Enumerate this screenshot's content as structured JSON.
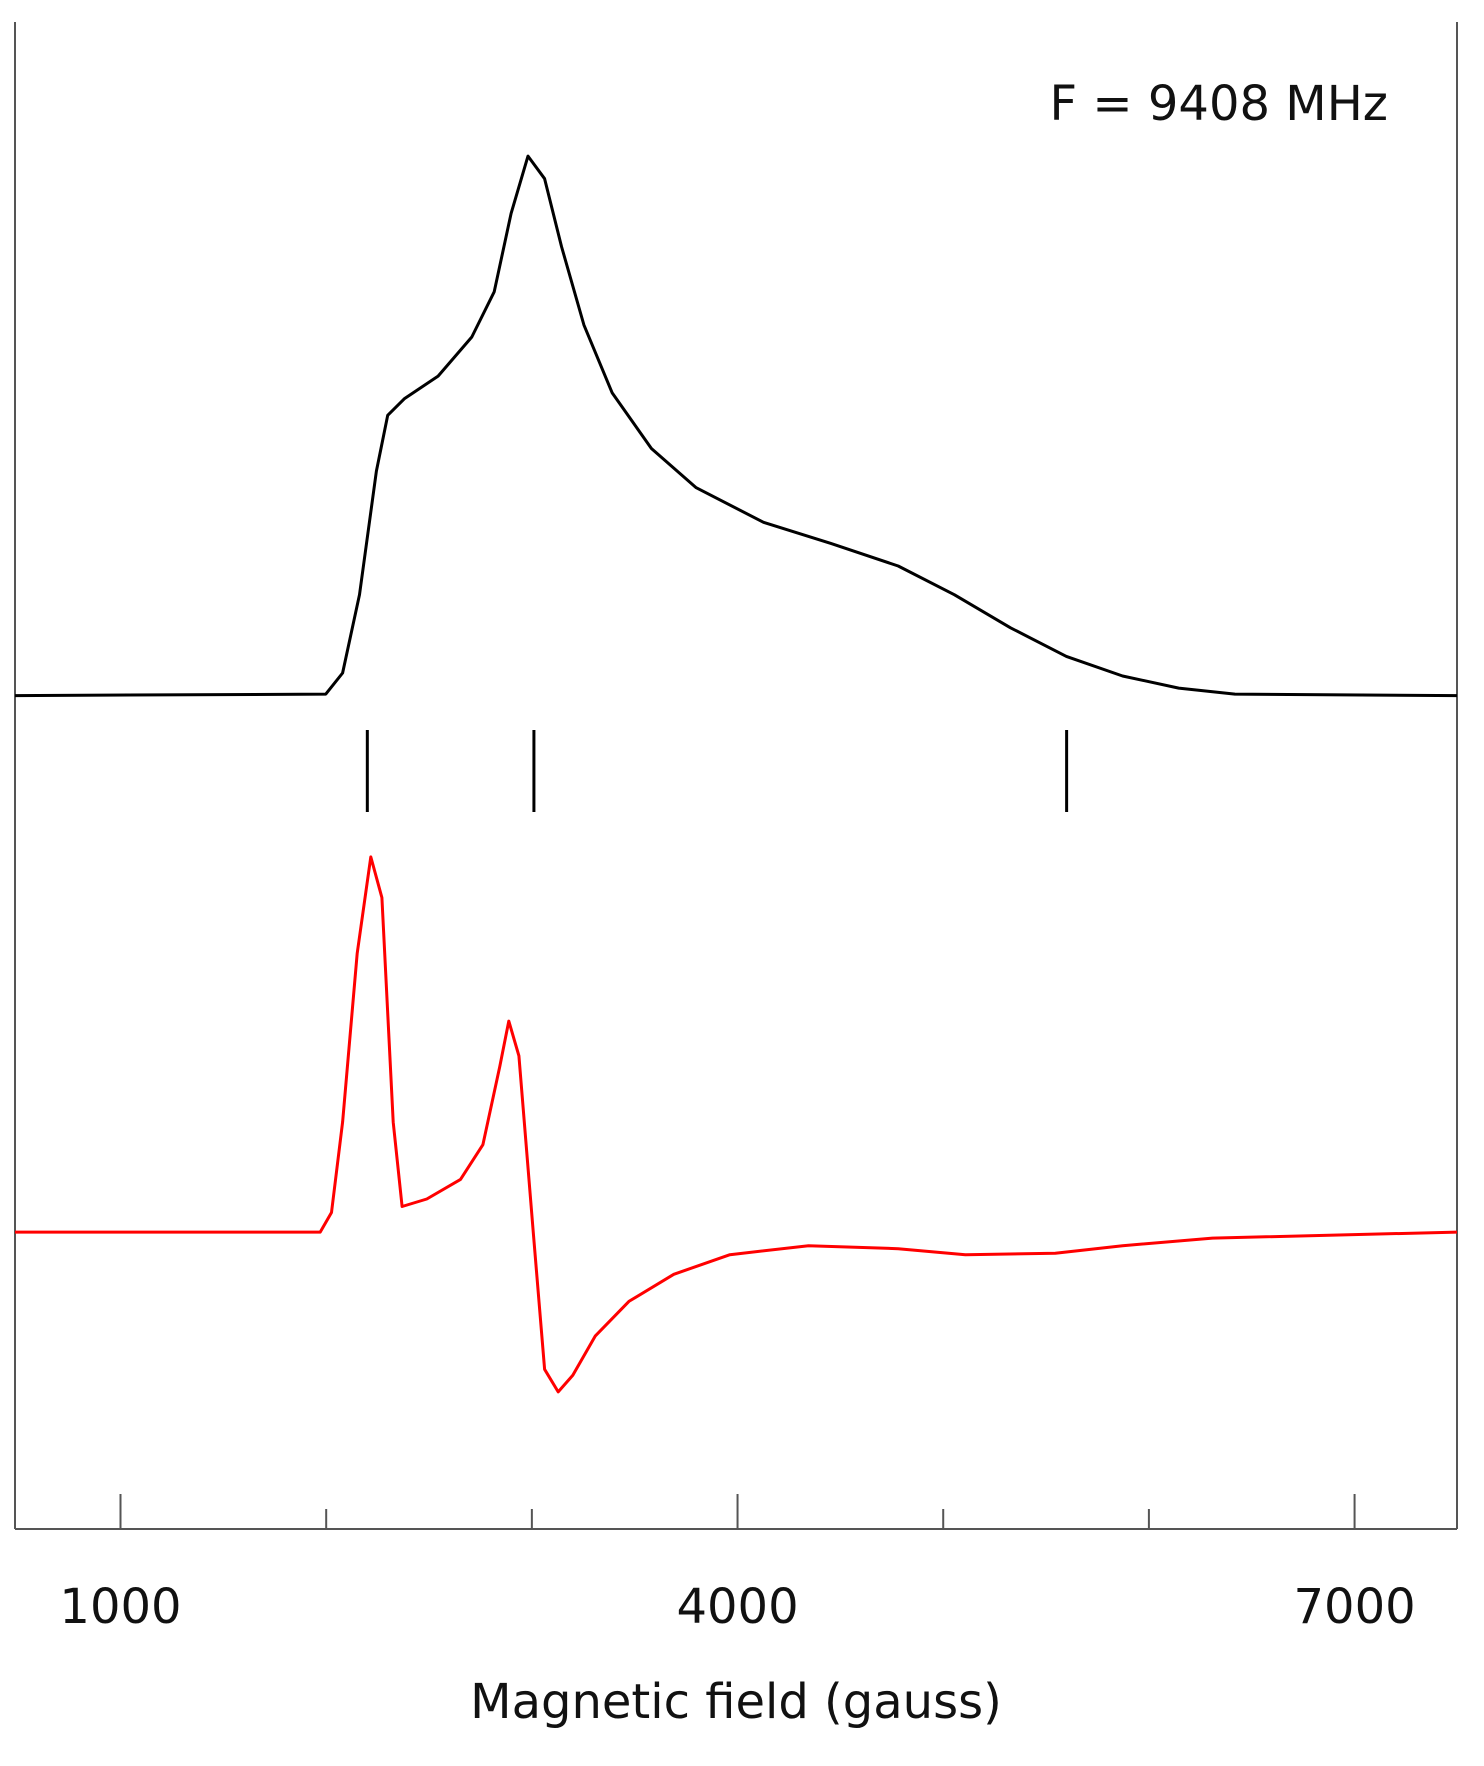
{
  "chart_data": {
    "type": "line",
    "annotation": "F = 9408 MHz",
    "xlabel": "Magnetic field (gauss)",
    "xlim": [
      487,
      7498
    ],
    "ylim": [
      0,
      100
    ],
    "xticks": [
      1000,
      4000,
      7000
    ],
    "xminor_ticks": [
      2000,
      3000,
      5000,
      6000
    ],
    "markers": [
      2200,
      3010,
      5600
    ],
    "series": [
      {
        "color": "#000000",
        "x": [
          487,
          1998,
          2080,
          2162,
          2244,
          2299,
          2380,
          2544,
          2708,
          2817,
          2899,
          2981,
          3062,
          3144,
          3253,
          3390,
          3581,
          3799,
          4126,
          4454,
          4781,
          5054,
          5327,
          5599,
          5872,
          6145,
          6418,
          7498
        ],
        "values": [
          55.3,
          55.4,
          56.8,
          62.0,
          70.2,
          73.9,
          75.0,
          76.5,
          79.1,
          82.1,
          87.3,
          91.1,
          89.6,
          85.1,
          79.9,
          75.4,
          71.7,
          69.1,
          66.8,
          65.4,
          63.9,
          62.0,
          59.8,
          57.9,
          56.6,
          55.8,
          55.4,
          55.3
        ]
      },
      {
        "color": "#ff0000",
        "x": [
          487,
          1971,
          2026,
          2080,
          2151,
          2217,
          2271,
          2326,
          2369,
          2489,
          2653,
          2762,
          2844,
          2888,
          2937,
          3008,
          3062,
          3128,
          3199,
          3308,
          3472,
          3690,
          3963,
          4345,
          4781,
          5108,
          5545,
          5872,
          6309,
          7498
        ],
        "values": [
          19.7,
          19.7,
          21.0,
          27.0,
          38.2,
          44.6,
          41.9,
          27.0,
          21.4,
          21.9,
          23.2,
          25.5,
          30.7,
          33.7,
          31.4,
          19.5,
          10.6,
          9.1,
          10.2,
          12.8,
          15.1,
          16.9,
          18.2,
          18.8,
          18.6,
          18.2,
          18.3,
          18.8,
          19.3,
          19.7
        ]
      }
    ]
  }
}
